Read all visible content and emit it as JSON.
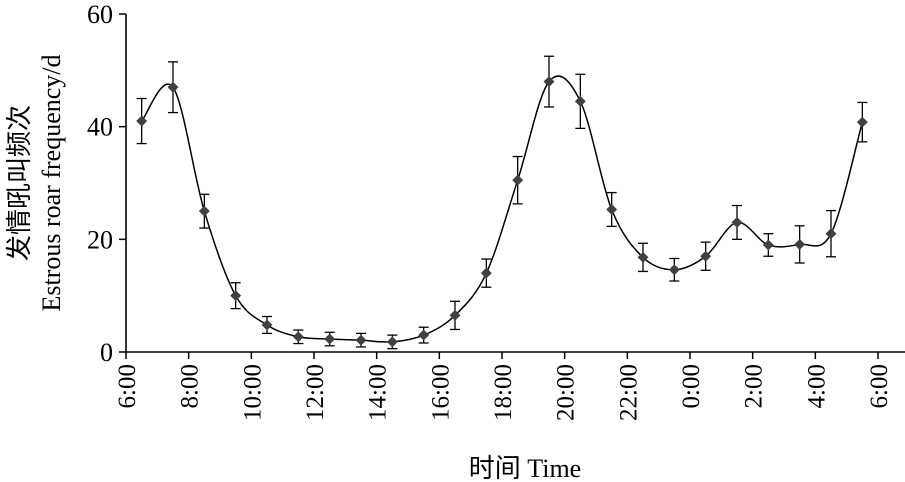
{
  "chart_data": {
    "type": "line",
    "title": "",
    "xlabel": "时间 Time",
    "ylabel": "发情吼叫频次\nEstrous roar frequency/d",
    "ylabel_lines": [
      "发情吼叫频次",
      "Estrous roar frequency/d"
    ],
    "x_ticks": [
      "6:00",
      "8:00",
      "10:00",
      "12:00",
      "14:00",
      "16:00",
      "18:00",
      "20:00",
      "22:00",
      "0:00",
      "2:00",
      "4:00",
      "6:00"
    ],
    "y_ticks": [
      "0",
      "20",
      "40",
      "60"
    ],
    "ylim": [
      0,
      60
    ],
    "xlim_hours": [
      0,
      24
    ],
    "grid": false,
    "x": [
      "6:30",
      "7:30",
      "8:30",
      "9:30",
      "10:30",
      "11:30",
      "12:30",
      "13:30",
      "14:30",
      "15:30",
      "16:30",
      "17:30",
      "18:30",
      "19:30",
      "20:30",
      "21:30",
      "22:30",
      "23:30",
      "0:30",
      "1:30",
      "2:30",
      "3:30",
      "4:30",
      "5:30"
    ],
    "series": [
      {
        "values": [
          41,
          47,
          25,
          10,
          4.8,
          2.7,
          2.3,
          2.1,
          1.8,
          3.0,
          6.5,
          14,
          30.5,
          48,
          44.5,
          25.3,
          16.8,
          14.6,
          17,
          23,
          19,
          19.1,
          21,
          40.8
        ],
        "error": [
          4,
          4.5,
          3,
          2.3,
          1.5,
          1.2,
          1.2,
          1.2,
          1.2,
          1.4,
          2.5,
          2.5,
          4.2,
          4.5,
          4.8,
          3,
          2.5,
          2,
          2.5,
          3,
          2,
          3.3,
          4.1,
          3.5
        ]
      }
    ],
    "colors": {
      "line": "#000000",
      "marker": "#404040"
    }
  }
}
